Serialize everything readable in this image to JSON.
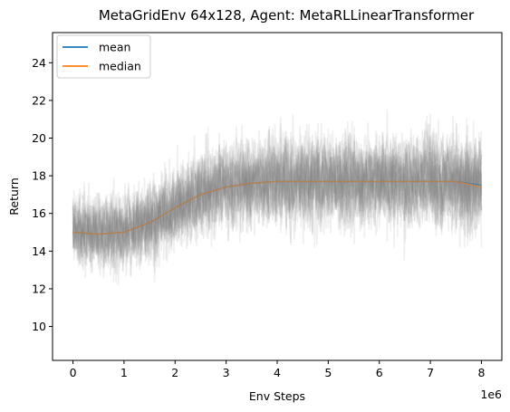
{
  "chart_data": {
    "type": "line",
    "title": "MetaGridEnv 64x128, Agent: MetaRLLinearTransformer",
    "xlabel": "Env Steps",
    "ylabel": "Return",
    "x_offset_label": "1e6",
    "xlim": [
      -0.4,
      8.4
    ],
    "ylim": [
      8.2,
      25.6
    ],
    "xticks": [
      0,
      1,
      2,
      3,
      4,
      5,
      6,
      7,
      8
    ],
    "yticks": [
      10,
      12,
      14,
      16,
      18,
      20,
      22,
      24
    ],
    "grid": false,
    "legend_position": "top-left",
    "background_runs": {
      "color": "#808080",
      "description_free": true,
      "band_upper": [
        [
          0,
          18.0
        ],
        [
          1,
          17.8
        ],
        [
          2,
          19.0
        ],
        [
          3,
          20.5
        ],
        [
          4,
          21.0
        ],
        [
          5,
          21.0
        ],
        [
          6,
          21.0
        ],
        [
          7,
          21.0
        ],
        [
          8,
          21.5
        ]
      ],
      "band_lower": [
        [
          0,
          13.0
        ],
        [
          1,
          12.2
        ],
        [
          2,
          13.5
        ],
        [
          3,
          14.5
        ],
        [
          4,
          14.5
        ],
        [
          5,
          14.5
        ],
        [
          6,
          14.5
        ],
        [
          7,
          14.5
        ],
        [
          8,
          14.0
        ]
      ]
    },
    "series": [
      {
        "name": "mean",
        "color": "#1f77b4",
        "x": [
          0,
          0.5,
          1,
          1.5,
          2,
          2.5,
          3,
          3.5,
          4,
          4.5,
          5,
          5.5,
          6,
          6.5,
          7,
          7.5,
          8
        ],
        "y": [
          15.0,
          14.9,
          15.0,
          15.5,
          16.3,
          17.0,
          17.4,
          17.6,
          17.7,
          17.7,
          17.7,
          17.7,
          17.7,
          17.7,
          17.7,
          17.7,
          17.5
        ]
      },
      {
        "name": "median",
        "color": "#ff7f0e",
        "x": [
          0,
          0.5,
          1,
          1.5,
          2,
          2.5,
          3,
          3.5,
          4,
          4.5,
          5,
          5.5,
          6,
          6.5,
          7,
          7.5,
          8
        ],
        "y": [
          15.0,
          14.9,
          15.0,
          15.5,
          16.3,
          17.0,
          17.4,
          17.6,
          17.7,
          17.7,
          17.7,
          17.7,
          17.7,
          17.7,
          17.7,
          17.7,
          17.4
        ]
      }
    ]
  }
}
